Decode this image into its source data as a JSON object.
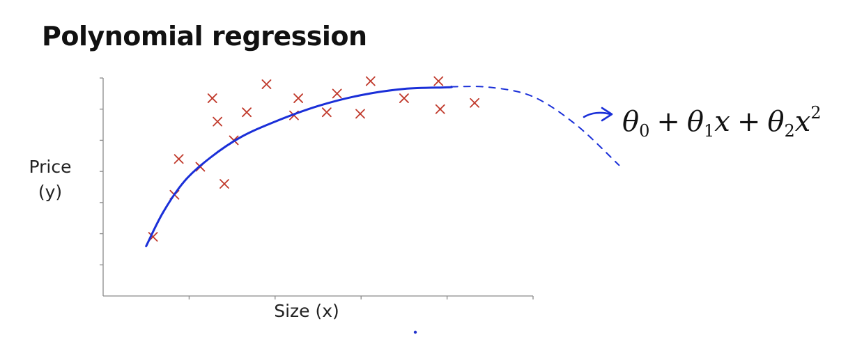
{
  "title": "Polynomial regression",
  "chart_data": {
    "type": "scatter",
    "title": "Polynomial regression",
    "xlabel": "Size (x)",
    "ylabel": "Price (y)",
    "ylabel_lines": [
      "Price",
      "(y)"
    ],
    "xlim": [
      0,
      5
    ],
    "ylim": [
      0,
      7
    ],
    "grid": false,
    "series": [
      {
        "marker": "x",
        "color": "#c0392b",
        "points": [
          [
            0.58,
            1.9
          ],
          [
            0.83,
            3.25
          ],
          [
            0.88,
            4.4
          ],
          [
            1.13,
            4.15
          ],
          [
            1.27,
            6.35
          ],
          [
            1.33,
            5.6
          ],
          [
            1.41,
            3.6
          ],
          [
            1.52,
            5.0
          ],
          [
            1.67,
            5.9
          ],
          [
            1.9,
            6.8
          ],
          [
            2.22,
            5.8
          ],
          [
            2.27,
            6.35
          ],
          [
            2.6,
            5.9
          ],
          [
            2.72,
            6.5
          ],
          [
            2.99,
            5.85
          ],
          [
            3.11,
            6.9
          ],
          [
            3.5,
            6.35
          ],
          [
            3.9,
            6.9
          ],
          [
            3.92,
            6.0
          ],
          [
            4.32,
            6.2
          ]
        ]
      }
    ],
    "fit_curve": {
      "color": "#1a2fd8",
      "points": [
        [
          0.5,
          1.6
        ],
        [
          0.7,
          2.7
        ],
        [
          0.95,
          3.7
        ],
        [
          1.25,
          4.45
        ],
        [
          1.6,
          5.1
        ],
        [
          2.0,
          5.6
        ],
        [
          2.5,
          6.1
        ],
        [
          3.0,
          6.45
        ],
        [
          3.5,
          6.65
        ],
        [
          4.0,
          6.7
        ],
        [
          4.05,
          6.72
        ]
      ],
      "extension_points": [
        [
          4.05,
          6.72
        ],
        [
          4.5,
          6.7
        ],
        [
          5.0,
          6.4
        ],
        [
          5.5,
          5.5
        ],
        [
          6.0,
          4.2
        ]
      ]
    },
    "formula": {
      "theta": "θ",
      "plus": "+",
      "x": "x",
      "sub0": "0",
      "sub1": "1",
      "sub2": "2",
      "sup2": "2"
    }
  }
}
